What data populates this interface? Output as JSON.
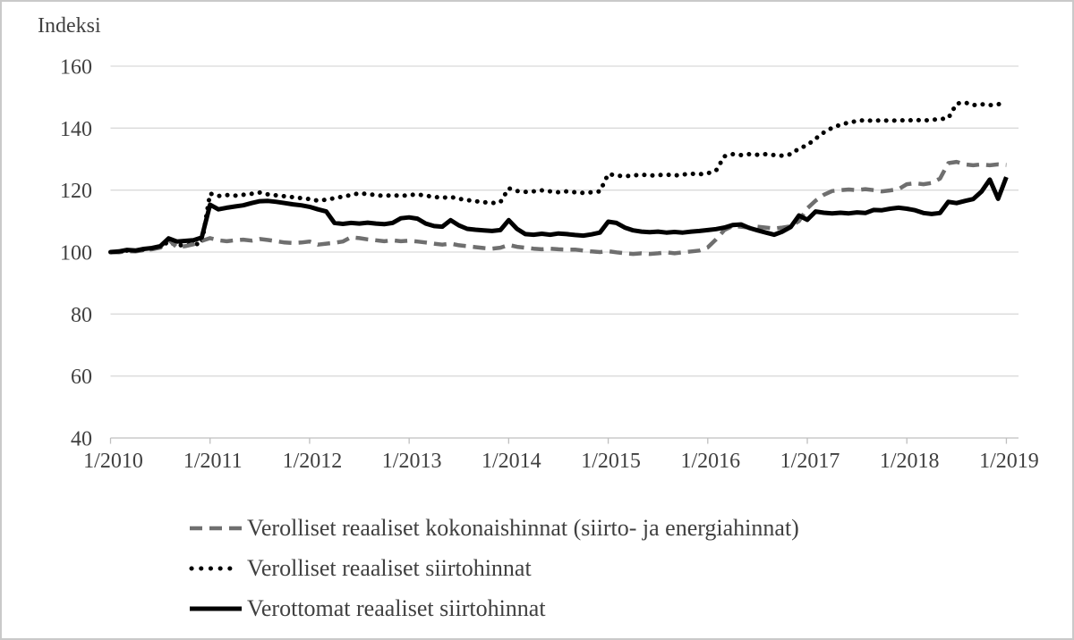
{
  "title": "Indeksi",
  "colors": {
    "series_gray": "#6f6f6f",
    "series_black": "#000000",
    "gridline": "#dadada",
    "axis": "#bfbfbf",
    "text": "#404040",
    "frame_border": "#c9c9c9",
    "background": "#ffffff"
  },
  "axes": {
    "y_ticks": [
      {
        "value": 160,
        "label": "160"
      },
      {
        "value": 140,
        "label": "140"
      },
      {
        "value": 120,
        "label": "120"
      },
      {
        "value": 100,
        "label": "100"
      },
      {
        "value": 80,
        "label": "80"
      },
      {
        "value": 60,
        "label": "60"
      },
      {
        "value": 40,
        "label": "40"
      }
    ],
    "x_ticks": [
      "1/2010",
      "1/2011",
      "1/2012",
      "1/2013",
      "1/2014",
      "1/2015",
      "1/2016",
      "1/2017",
      "1/2018",
      "1/2019"
    ]
  },
  "legend": {
    "items": [
      {
        "label": "Verolliset reaaliset kokonaishinnat (siirto- ja energiahinnat)",
        "style": "dashed",
        "color": "#6f6f6f"
      },
      {
        "label": "Verolliset reaaliset siirtohinnat",
        "style": "dotted",
        "color": "#000000"
      },
      {
        "label": "Verottomat reaaliset siirtohinnat",
        "style": "solid",
        "color": "#000000"
      }
    ]
  },
  "chart_data": {
    "type": "line",
    "title": "Indeksi",
    "xlabel": "",
    "ylabel": "Indeksi",
    "ylim": [
      40,
      160
    ],
    "y_tick_step": 20,
    "grid": true,
    "legend_position": "bottom",
    "x_unit": "month",
    "x_start": "1/2010",
    "x_end": "1/2019",
    "x_tick_labels": [
      "1/2010",
      "1/2011",
      "1/2012",
      "1/2013",
      "1/2014",
      "1/2015",
      "1/2016",
      "1/2017",
      "1/2018",
      "1/2019"
    ],
    "series": [
      {
        "name": "Verolliset reaaliset kokonaishinnat (siirto- ja energiahinnat)",
        "style": "dashed",
        "color": "#6f6f6f",
        "values": [
          100.0,
          99.9,
          100.3,
          100.2,
          100.6,
          100.9,
          101.4,
          104.0,
          101.6,
          101.9,
          102.5,
          103.6,
          104.5,
          103.8,
          103.5,
          103.8,
          104.0,
          103.7,
          104.2,
          103.9,
          103.5,
          103.1,
          102.9,
          103.1,
          103.4,
          102.4,
          102.7,
          103.0,
          103.4,
          104.8,
          104.5,
          104.1,
          103.8,
          103.5,
          103.8,
          103.5,
          103.7,
          103.4,
          103.1,
          102.7,
          102.4,
          102.7,
          102.2,
          101.9,
          101.6,
          101.3,
          101.1,
          101.4,
          102.3,
          101.7,
          101.4,
          101.1,
          100.9,
          101.1,
          100.9,
          100.8,
          100.8,
          100.5,
          100.2,
          100.0,
          100.3,
          99.9,
          99.6,
          99.4,
          99.6,
          99.4,
          99.6,
          99.9,
          99.6,
          99.9,
          100.2,
          100.5,
          101.5,
          104.1,
          107.1,
          108.4,
          108.2,
          107.9,
          108.2,
          107.9,
          107.6,
          107.9,
          108.3,
          110.0,
          114.1,
          116.6,
          118.5,
          119.7,
          120.0,
          120.2,
          120.0,
          120.3,
          120.0,
          119.6,
          119.9,
          120.3,
          121.9,
          122.2,
          121.9,
          122.3,
          123.7,
          128.7,
          129.1,
          128.3,
          128.0,
          128.3,
          128.0,
          128.3,
          128.1
        ]
      },
      {
        "name": "Verolliset reaaliset siirtohinnat",
        "style": "dotted",
        "color": "#000000",
        "values": [
          100.0,
          100.1,
          100.5,
          100.4,
          100.8,
          101.1,
          101.6,
          103.4,
          102.1,
          102.3,
          102.5,
          102.7,
          118.9,
          118.1,
          118.4,
          118.2,
          118.5,
          118.8,
          119.2,
          118.6,
          118.3,
          118.0,
          117.7,
          117.4,
          117.1,
          116.6,
          116.9,
          117.4,
          117.9,
          118.4,
          119.0,
          118.7,
          118.4,
          118.1,
          118.4,
          118.1,
          118.4,
          118.6,
          118.2,
          117.8,
          117.5,
          117.8,
          117.2,
          116.8,
          116.4,
          116.1,
          115.8,
          116.1,
          120.6,
          119.7,
          119.4,
          119.6,
          119.9,
          119.6,
          119.3,
          119.6,
          119.3,
          119.1,
          119.3,
          119.6,
          125.2,
          124.7,
          124.5,
          124.7,
          125.0,
          124.7,
          124.8,
          125.0,
          124.7,
          125.0,
          125.3,
          125.1,
          125.4,
          126.3,
          130.9,
          131.6,
          131.3,
          131.6,
          131.4,
          131.6,
          131.3,
          131.1,
          131.6,
          133.4,
          134.5,
          136.6,
          138.6,
          140.1,
          141.1,
          141.8,
          142.3,
          142.6,
          142.3,
          142.6,
          142.3,
          142.6,
          142.4,
          142.7,
          142.4,
          142.7,
          142.9,
          143.2,
          147.9,
          148.3,
          147.4,
          147.7,
          147.4,
          147.7,
          147.9
        ]
      },
      {
        "name": "Verottomat reaaliset siirtohinnat",
        "style": "solid",
        "color": "#000000",
        "values": [
          100.0,
          100.2,
          100.7,
          100.5,
          101.0,
          101.3,
          101.9,
          104.4,
          103.4,
          103.6,
          103.8,
          104.7,
          115.3,
          113.8,
          114.3,
          114.7,
          115.1,
          115.8,
          116.4,
          116.5,
          116.2,
          115.8,
          115.4,
          115.1,
          114.6,
          113.8,
          113.1,
          109.4,
          109.1,
          109.4,
          109.2,
          109.5,
          109.2,
          109.0,
          109.4,
          110.9,
          111.2,
          110.8,
          109.2,
          108.4,
          108.2,
          110.3,
          108.6,
          107.5,
          107.2,
          107.0,
          106.8,
          107.1,
          110.3,
          107.5,
          105.8,
          105.6,
          105.9,
          105.6,
          106.0,
          105.8,
          105.5,
          105.3,
          105.7,
          106.3,
          109.8,
          109.4,
          107.9,
          107.0,
          106.6,
          106.4,
          106.6,
          106.3,
          106.5,
          106.3,
          106.6,
          106.8,
          107.1,
          107.4,
          107.9,
          108.7,
          108.9,
          107.8,
          107.0,
          106.3,
          105.6,
          106.6,
          108.1,
          111.8,
          110.4,
          113.1,
          112.7,
          112.5,
          112.7,
          112.5,
          112.8,
          112.6,
          113.6,
          113.5,
          114.0,
          114.3,
          114.0,
          113.5,
          112.6,
          112.3,
          112.6,
          116.2,
          115.8,
          116.5,
          117.1,
          119.5,
          123.4,
          117.2,
          124.2
        ]
      }
    ]
  }
}
